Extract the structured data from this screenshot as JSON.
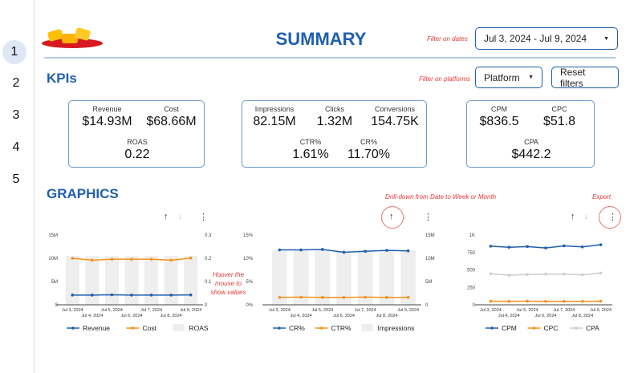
{
  "header": {
    "title": "SUMMARY",
    "date_note": "Filter on dates",
    "date_range": "Jul 3, 2024 - Jul 9, 2024",
    "platform_note": "Filter on platforms",
    "platform_label": "Platform",
    "reset_label": "Reset filters"
  },
  "pages": [
    "1",
    "2",
    "3",
    "4",
    "5"
  ],
  "kpis": {
    "heading": "KPIs",
    "revenue_label": "Revenue",
    "revenue": "$14.93M",
    "cost_label": "Cost",
    "cost": "$68.66M",
    "roas_label": "ROAS",
    "roas": "0.22",
    "impr_label": "Impressions",
    "impr": "82.15M",
    "clicks_label": "Clicks",
    "clicks": "1.32M",
    "conv_label": "Conversions",
    "conv": "154.75K",
    "ctr_label": "CTR%",
    "ctr": "1.61%",
    "cr_label": "CR%",
    "cr": "11.70%",
    "cpm_label": "CPM",
    "cpm": "$836.5",
    "cpc_label": "CPC",
    "cpc": "$51.8",
    "cpa_label": "CPA",
    "cpa": "$442.2"
  },
  "graphics": {
    "heading": "GRAPHICS",
    "hover_note": "Hoover the mouse to show values",
    "drill_note": "Drill-down from Date to Week or Month",
    "export_note": "Export"
  },
  "colors": {
    "blue": "#1f5fae",
    "orange": "#f5921e",
    "grey": "#cccccc",
    "bar": "#eeeeee"
  },
  "chart_data": [
    {
      "type": "line",
      "categories": [
        "Jul 3, 2024",
        "Jul 4, 2024",
        "Jul 5, 2024",
        "Jul 6, 2024",
        "Jul 7, 2024",
        "Jul 8, 2024",
        "Jul 9, 2024"
      ],
      "left_ticks": [
        "0",
        "5M",
        "10M",
        "15M"
      ],
      "right_ticks": [
        "0",
        "0.1",
        "0.2",
        "0.3"
      ],
      "ylim": [
        0,
        15000000
      ],
      "y2lim": [
        0,
        0.3
      ],
      "series": [
        {
          "name": "Revenue",
          "axis": "left",
          "kind": "line",
          "color": "#1f5fae",
          "values": [
            2100000,
            2100000,
            2150000,
            2100000,
            2100000,
            2100000,
            2130000
          ]
        },
        {
          "name": "Cost",
          "axis": "left",
          "kind": "line",
          "color": "#f5921e",
          "values": [
            10000000,
            9600000,
            9800000,
            9800000,
            9800000,
            9600000,
            10050000
          ]
        },
        {
          "name": "ROAS",
          "axis": "right",
          "kind": "bar",
          "color": "#eeeeee",
          "values": [
            0.21,
            0.21,
            0.21,
            0.21,
            0.21,
            0.21,
            0.21
          ]
        }
      ]
    },
    {
      "type": "line",
      "categories": [
        "Jul 3, 2024",
        "Jul 4, 2024",
        "Jul 5, 2024",
        "Jul 6, 2024",
        "Jul 7, 2024",
        "Jul 8, 2024",
        "Jul 9, 2024"
      ],
      "left_ticks": [
        "0%",
        "5%",
        "10%",
        "15%"
      ],
      "right_ticks": [
        "0",
        "5M",
        "10M",
        "15M"
      ],
      "ylim": [
        0,
        15
      ],
      "y2lim": [
        0,
        15000000
      ],
      "series": [
        {
          "name": "CR%",
          "axis": "left",
          "kind": "line",
          "color": "#1f5fae",
          "values": [
            11.8,
            11.8,
            11.9,
            11.3,
            11.5,
            11.7,
            11.6
          ]
        },
        {
          "name": "CTR%",
          "axis": "left",
          "kind": "line",
          "color": "#f5921e",
          "values": [
            1.6,
            1.65,
            1.6,
            1.6,
            1.65,
            1.6,
            1.6
          ]
        },
        {
          "name": "Impressions",
          "axis": "right",
          "kind": "bar",
          "color": "#eeeeee",
          "values": [
            11700000,
            11700000,
            11700000,
            11700000,
            11700000,
            11700000,
            11700000
          ]
        }
      ]
    },
    {
      "type": "line",
      "categories": [
        "Jul 3, 2024",
        "Jul 4, 2024",
        "Jul 5, 2024",
        "Jul 6, 2024",
        "Jul 7, 2024",
        "Jul 8, 2024",
        "Jul 9, 2024"
      ],
      "left_ticks": [
        "0",
        "250",
        "500",
        "750",
        "1K"
      ],
      "right_ticks": [],
      "ylim": [
        0,
        1000
      ],
      "series": [
        {
          "name": "CPM",
          "axis": "left",
          "kind": "line",
          "color": "#1f5fae",
          "values": [
            840,
            825,
            835,
            815,
            845,
            830,
            860
          ]
        },
        {
          "name": "CPC",
          "axis": "left",
          "kind": "line",
          "color": "#f5921e",
          "values": [
            52,
            50,
            52,
            50,
            50,
            50,
            52
          ]
        },
        {
          "name": "CPA",
          "axis": "left",
          "kind": "line",
          "color": "#cccccc",
          "values": [
            445,
            425,
            435,
            440,
            440,
            430,
            455
          ]
        }
      ]
    }
  ]
}
